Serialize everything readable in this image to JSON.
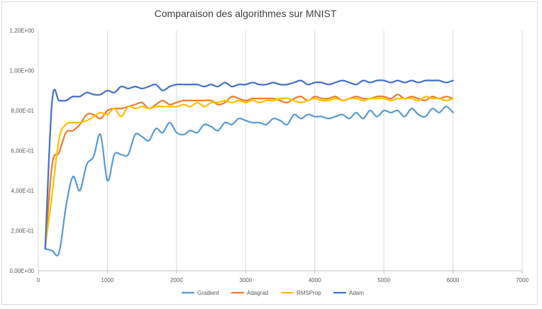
{
  "chart_data": {
    "type": "line",
    "title": "Comparaison des algorithmes sur MNIST",
    "xlabel": "",
    "ylabel": "",
    "xlim": [
      0,
      7000
    ],
    "ylim": [
      0,
      1.2
    ],
    "x_ticks": [
      "0",
      "1000",
      "2000",
      "3000",
      "4000",
      "5000",
      "6000",
      "7000"
    ],
    "y_ticks": [
      "0,00E+00",
      "2,00E-01",
      "4,00E-01",
      "6,00E-01",
      "8,00E-01",
      "1,00E+00",
      "1,20E+00"
    ],
    "grid": "vertical",
    "legend_position": "bottom",
    "series": [
      {
        "name": "Gradient",
        "color": "#5b9bd5",
        "x": [
          100,
          200,
          300,
          400,
          500,
          600,
          700,
          800,
          900,
          1000,
          1100,
          1200,
          1300,
          1400,
          1500,
          1600,
          1700,
          1800,
          1900,
          2000,
          2100,
          2200,
          2300,
          2400,
          2500,
          2600,
          2700,
          2800,
          2900,
          3000,
          3100,
          3200,
          3300,
          3400,
          3500,
          3600,
          3700,
          3800,
          3900,
          4000,
          4100,
          4200,
          4300,
          4400,
          4500,
          4600,
          4700,
          4800,
          4900,
          5000,
          5100,
          5200,
          5300,
          5400,
          5500,
          5600,
          5700,
          5800,
          5900,
          6000
        ],
        "y": [
          0.11,
          0.1,
          0.09,
          0.32,
          0.47,
          0.4,
          0.53,
          0.57,
          0.68,
          0.45,
          0.58,
          0.58,
          0.58,
          0.68,
          0.67,
          0.65,
          0.71,
          0.69,
          0.74,
          0.69,
          0.68,
          0.7,
          0.69,
          0.73,
          0.72,
          0.7,
          0.74,
          0.73,
          0.76,
          0.75,
          0.74,
          0.74,
          0.73,
          0.76,
          0.75,
          0.73,
          0.78,
          0.76,
          0.78,
          0.77,
          0.77,
          0.76,
          0.77,
          0.78,
          0.76,
          0.79,
          0.76,
          0.8,
          0.77,
          0.8,
          0.79,
          0.8,
          0.77,
          0.81,
          0.78,
          0.77,
          0.81,
          0.79,
          0.82,
          0.79
        ]
      },
      {
        "name": "Adagrad",
        "color": "#ed7d31",
        "x": [
          100,
          200,
          300,
          400,
          500,
          600,
          700,
          800,
          900,
          1000,
          1100,
          1200,
          1300,
          1400,
          1500,
          1600,
          1700,
          1800,
          1900,
          2000,
          2100,
          2200,
          2300,
          2400,
          2500,
          2600,
          2700,
          2800,
          2900,
          3000,
          3100,
          3200,
          3300,
          3400,
          3500,
          3600,
          3700,
          3800,
          3900,
          4000,
          4100,
          4200,
          4300,
          4400,
          4500,
          4600,
          4700,
          4800,
          4900,
          5000,
          5100,
          5200,
          5300,
          5400,
          5500,
          5600,
          5700,
          5800,
          5900,
          6000
        ],
        "y": [
          0.11,
          0.53,
          0.59,
          0.69,
          0.7,
          0.73,
          0.78,
          0.78,
          0.76,
          0.8,
          0.81,
          0.81,
          0.82,
          0.83,
          0.84,
          0.81,
          0.83,
          0.85,
          0.83,
          0.84,
          0.85,
          0.85,
          0.85,
          0.85,
          0.85,
          0.83,
          0.84,
          0.87,
          0.86,
          0.85,
          0.86,
          0.86,
          0.86,
          0.86,
          0.85,
          0.84,
          0.86,
          0.87,
          0.85,
          0.87,
          0.86,
          0.86,
          0.87,
          0.85,
          0.86,
          0.87,
          0.86,
          0.86,
          0.87,
          0.87,
          0.86,
          0.88,
          0.86,
          0.87,
          0.86,
          0.85,
          0.87,
          0.86,
          0.87,
          0.86
        ]
      },
      {
        "name": "RMSProp",
        "color": "#ffc000",
        "x": [
          100,
          200,
          300,
          400,
          500,
          600,
          700,
          800,
          900,
          1000,
          1100,
          1200,
          1300,
          1400,
          1500,
          1600,
          1700,
          1800,
          1900,
          2000,
          2100,
          2200,
          2300,
          2400,
          2500,
          2600,
          2700,
          2800,
          2900,
          3000,
          3100,
          3200,
          3300,
          3400,
          3500,
          3600,
          3700,
          3800,
          3900,
          4000,
          4100,
          4200,
          4300,
          4400,
          4500,
          4600,
          4700,
          4800,
          4900,
          5000,
          5100,
          5200,
          5300,
          5400,
          5500,
          5600,
          5700,
          5800,
          5900,
          6000
        ],
        "y": [
          0.12,
          0.38,
          0.66,
          0.73,
          0.74,
          0.74,
          0.75,
          0.77,
          0.79,
          0.78,
          0.81,
          0.77,
          0.82,
          0.81,
          0.82,
          0.81,
          0.82,
          0.82,
          0.82,
          0.82,
          0.83,
          0.82,
          0.84,
          0.82,
          0.84,
          0.84,
          0.85,
          0.84,
          0.85,
          0.84,
          0.85,
          0.84,
          0.85,
          0.85,
          0.86,
          0.86,
          0.85,
          0.84,
          0.85,
          0.86,
          0.85,
          0.85,
          0.86,
          0.85,
          0.86,
          0.86,
          0.85,
          0.86,
          0.86,
          0.86,
          0.85,
          0.86,
          0.86,
          0.86,
          0.85,
          0.87,
          0.86,
          0.86,
          0.85,
          0.86
        ]
      },
      {
        "name": "Adam",
        "color": "#4472c4",
        "x": [
          100,
          200,
          300,
          400,
          500,
          600,
          700,
          800,
          900,
          1000,
          1100,
          1200,
          1300,
          1400,
          1500,
          1600,
          1700,
          1800,
          1900,
          2000,
          2100,
          2200,
          2300,
          2400,
          2500,
          2600,
          2700,
          2800,
          2900,
          3000,
          3100,
          3200,
          3300,
          3400,
          3500,
          3600,
          3700,
          3800,
          3900,
          4000,
          4100,
          4200,
          4300,
          4400,
          4500,
          4600,
          4700,
          4800,
          4900,
          5000,
          5100,
          5200,
          5300,
          5400,
          5500,
          5600,
          5700,
          5800,
          5900,
          6000
        ],
        "y": [
          0.11,
          0.85,
          0.85,
          0.85,
          0.87,
          0.87,
          0.89,
          0.88,
          0.88,
          0.9,
          0.89,
          0.92,
          0.91,
          0.92,
          0.91,
          0.92,
          0.93,
          0.9,
          0.92,
          0.93,
          0.93,
          0.93,
          0.93,
          0.92,
          0.93,
          0.92,
          0.94,
          0.92,
          0.93,
          0.93,
          0.94,
          0.93,
          0.93,
          0.94,
          0.93,
          0.93,
          0.94,
          0.95,
          0.93,
          0.94,
          0.94,
          0.93,
          0.94,
          0.95,
          0.94,
          0.93,
          0.95,
          0.94,
          0.95,
          0.95,
          0.94,
          0.95,
          0.94,
          0.95,
          0.94,
          0.95,
          0.95,
          0.95,
          0.94,
          0.95
        ]
      }
    ]
  }
}
